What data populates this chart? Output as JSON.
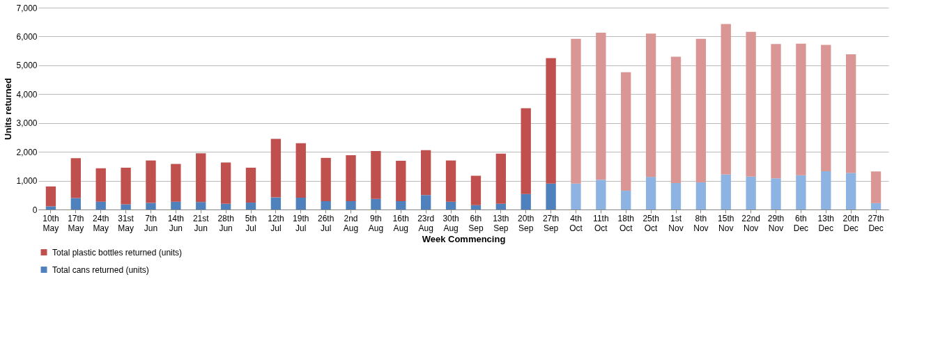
{
  "chart_data": {
    "type": "bar",
    "stacked": true,
    "xlabel": "Week Commencing",
    "ylabel": "Units returned",
    "legend": "bottom left",
    "grid": "y",
    "ylim": [
      0,
      7000
    ],
    "yticks": [
      0,
      {
        "value": 1000,
        "label": "1,000"
      },
      {
        "value": 2000,
        "label": "2,000"
      },
      {
        "value": 3000,
        "label": "3,000"
      },
      {
        "value": 4000,
        "label": "4,000"
      },
      {
        "value": 5000,
        "label": "5,000"
      },
      {
        "value": 6000,
        "label": "6,000"
      },
      {
        "value": 7000,
        "label": "7,000"
      }
    ],
    "categories": [
      "10th May",
      "17th May",
      "24th May",
      "31st May",
      "7th Jun",
      "14th Jun",
      "21st Jun",
      "28th Jun",
      "5th Jul",
      "12th Jul",
      "19th Jul",
      "26th Jul",
      "2nd Aug",
      "9th Aug",
      "16th Aug",
      "23rd Aug",
      "30th Aug",
      "6th Sep",
      "13th Sep",
      "20th Sep",
      "27th Sep",
      "4th Oct",
      "11th Oct",
      "18th Oct",
      "25th Oct",
      "1st Nov",
      "8th Nov",
      "15th Nov",
      "22nd Nov",
      "29th Nov",
      "6th Dec",
      "13th Dec",
      "20th Dec",
      "27th Dec"
    ],
    "series": [
      {
        "name": "Total cans returned (units)",
        "color": "#4f81bd",
        "values": [
          110,
          400,
          270,
          180,
          230,
          270,
          260,
          200,
          240,
          420,
          410,
          290,
          290,
          370,
          290,
          500,
          270,
          150,
          200,
          540,
          900,
          900,
          1030,
          650,
          1130,
          920,
          940,
          1210,
          1140,
          1080,
          1190,
          1330,
          1270,
          220
        ],
        "colors": [
          "#4f81bd",
          "#4f81bd",
          "#4f81bd",
          "#4f81bd",
          "#4f81bd",
          "#4f81bd",
          "#4f81bd",
          "#4f81bd",
          "#4f81bd",
          "#4f81bd",
          "#4f81bd",
          "#4f81bd",
          "#4f81bd",
          "#4f81bd",
          "#4f81bd",
          "#4f81bd",
          "#4f81bd",
          "#4f81bd",
          "#4f81bd",
          "#4f81bd",
          "#4f81bd",
          "#8db3e2",
          "#8db3e2",
          "#8db3e2",
          "#8db3e2",
          "#8db3e2",
          "#8db3e2",
          "#8db3e2",
          "#8db3e2",
          "#8db3e2",
          "#8db3e2",
          "#8db3e2",
          "#8db3e2",
          "#8db3e2"
        ]
      },
      {
        "name": "Total plastic bottles returned (units)",
        "color": "#c0504d",
        "values": [
          690,
          1380,
          1160,
          1270,
          1470,
          1310,
          1690,
          1430,
          1210,
          2030,
          1890,
          1500,
          1590,
          1660,
          1400,
          1560,
          1430,
          1020,
          1740,
          2970,
          4350,
          5020,
          5100,
          4110,
          4970,
          4380,
          4980,
          5220,
          5020,
          4660,
          4560,
          4380,
          4110,
          1100
        ],
        "colors": [
          "#c0504d",
          "#c0504d",
          "#c0504d",
          "#c0504d",
          "#c0504d",
          "#c0504d",
          "#c0504d",
          "#c0504d",
          "#c0504d",
          "#c0504d",
          "#c0504d",
          "#c0504d",
          "#c0504d",
          "#c0504d",
          "#c0504d",
          "#c0504d",
          "#c0504d",
          "#c0504d",
          "#c0504d",
          "#c0504d",
          "#c0504d",
          "#d99694",
          "#d99694",
          "#d99694",
          "#d99694",
          "#d99694",
          "#d99694",
          "#d99694",
          "#d99694",
          "#d99694",
          "#d99694",
          "#d99694",
          "#d99694",
          "#d99694"
        ]
      }
    ]
  }
}
